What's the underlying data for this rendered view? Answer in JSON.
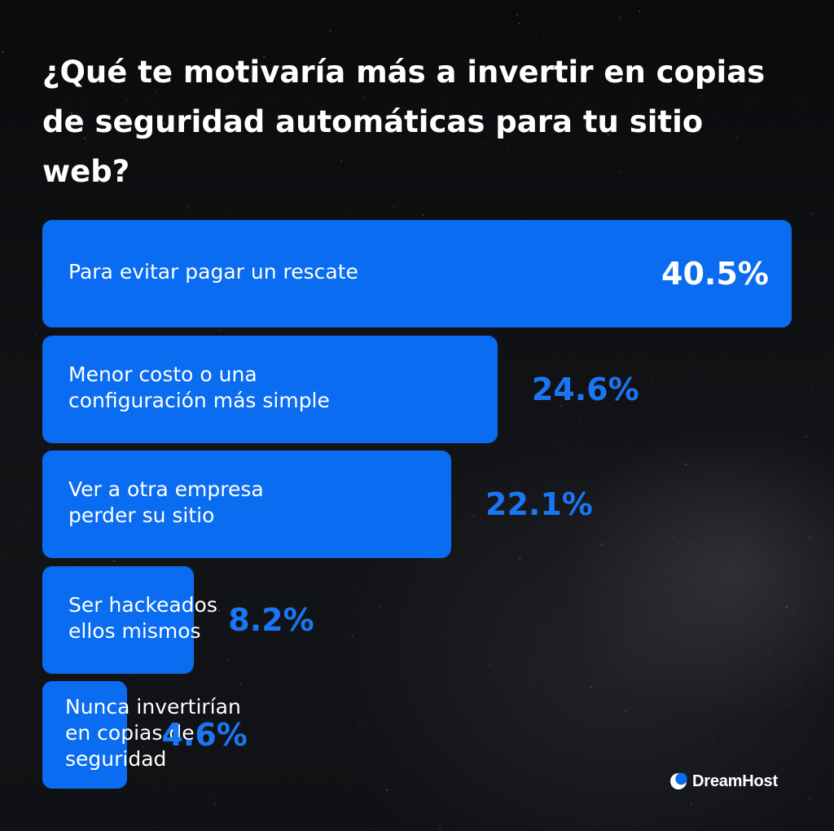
{
  "title": "¿Qué te motivaría más a invertir en copias de seguridad automáticas para tu sitio web?",
  "brand": {
    "name": "DreamHost"
  },
  "colors": {
    "bar": "#0a6cf1",
    "percent_outside": "#1976f5",
    "background": "#0c0d10",
    "text": "#ffffff"
  },
  "chart_data": {
    "type": "bar",
    "orientation": "horizontal",
    "title": "¿Qué te motivaría más a invertir en copias de seguridad automáticas para tu sitio web?",
    "categories": [
      "Para evitar pagar un rescate",
      "Menor costo o una configuración más simple",
      "Ver a otra empresa perder su sitio",
      "Ser hackeados ellos mismos",
      "Nunca invertirían en copias de seguridad"
    ],
    "values": [
      40.5,
      24.6,
      22.1,
      8.2,
      4.6
    ],
    "value_labels": [
      "40.5%",
      "24.6%",
      "22.1%",
      "8.2%",
      "4.6%"
    ],
    "unit": "%",
    "label_lines": [
      [
        "Para evitar pagar un rescate"
      ],
      [
        "Menor costo o una",
        "configuración más simple"
      ],
      [
        "Ver a otra empresa",
        "perder su sitio"
      ],
      [
        "Ser hackeados",
        "ellos mismos"
      ],
      [
        "Nunca invertirían",
        "en copias de",
        "seguridad"
      ]
    ],
    "xlabel": "",
    "ylabel": "",
    "grid": false,
    "legend": "none"
  }
}
